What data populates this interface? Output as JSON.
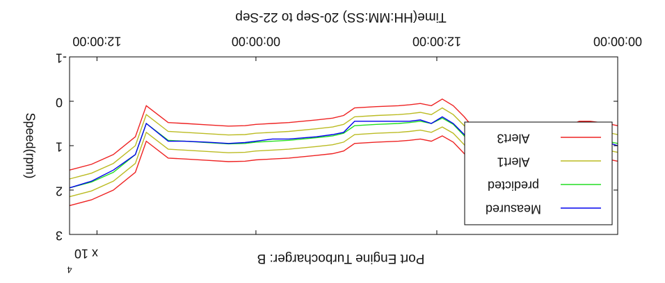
{
  "chart_data": {
    "type": "line",
    "title": "Port Engine Turbocharger: B",
    "xlabel": "Time(HH:MM:SS) 20-Sep to 22-Sep",
    "ylabel": "Speed(rpm)",
    "y_multiplier": "x 10",
    "y_multiplier_exp": "4",
    "orientation": "rotated-180",
    "x_ticks": [
      "12:00:00",
      "00:00:00",
      "12:00:00",
      "00:00:00"
    ],
    "y_ticks": [
      "-1",
      "0",
      "1",
      "2",
      "3"
    ],
    "x": [
      0,
      0.02,
      0.05,
      0.07,
      0.09,
      0.1,
      0.13,
      0.17,
      0.2,
      0.24,
      0.28,
      0.3,
      0.32,
      0.34,
      0.36,
      0.38,
      0.4,
      0.44,
      0.48,
      0.5,
      0.52,
      0.55,
      0.6,
      0.63,
      0.66,
      0.68,
      0.71,
      0.75,
      0.79,
      0.82,
      0.86,
      0.88,
      0.92,
      0.96,
      1.0
    ],
    "series": [
      {
        "name": "Measured",
        "color": "#0000ee",
        "values": [
          1.0,
          0.92,
          0.85,
          0.85,
          0.92,
          1.0,
          1.55,
          1.85,
          1.95,
          1.35,
          0.75,
          0.5,
          0.35,
          0.5,
          0.42,
          0.45,
          0.45,
          0.45,
          0.45,
          0.7,
          0.75,
          0.8,
          0.85,
          0.85,
          0.9,
          0.93,
          0.95,
          0.92,
          0.9,
          0.9,
          0.5,
          1.2,
          1.55,
          1.8,
          1.95
        ]
      },
      {
        "name": "predicted",
        "color": "#22dd22",
        "values": [
          0.95,
          0.9,
          0.85,
          0.85,
          0.95,
          1.05,
          1.5,
          1.85,
          1.95,
          1.4,
          0.78,
          0.52,
          0.38,
          0.5,
          0.45,
          0.48,
          0.5,
          0.52,
          0.55,
          0.72,
          0.78,
          0.82,
          0.88,
          0.9,
          0.92,
          0.95,
          0.96,
          0.93,
          0.9,
          0.88,
          0.5,
          1.2,
          1.6,
          1.82,
          1.95
        ]
      },
      {
        "name": "Alert1",
        "color": "#bbbb22",
        "values": [
          0.75,
          0.7,
          0.65,
          0.65,
          0.75,
          0.85,
          1.3,
          1.65,
          1.75,
          1.15,
          0.55,
          0.3,
          0.15,
          0.3,
          0.25,
          0.28,
          0.3,
          0.32,
          0.35,
          0.52,
          0.58,
          0.62,
          0.68,
          0.7,
          0.72,
          0.75,
          0.76,
          0.73,
          0.7,
          0.68,
          0.3,
          1.0,
          1.4,
          1.62,
          1.75
        ]
      },
      {
        "name": "Alert1",
        "color": "#bbbb22",
        "values": [
          1.15,
          1.1,
          1.05,
          1.05,
          1.15,
          1.25,
          1.7,
          2.05,
          2.15,
          1.6,
          0.98,
          0.72,
          0.58,
          0.7,
          0.65,
          0.68,
          0.7,
          0.72,
          0.75,
          0.92,
          0.98,
          1.02,
          1.08,
          1.1,
          1.12,
          1.15,
          1.16,
          1.13,
          1.1,
          1.08,
          0.7,
          1.4,
          1.8,
          2.02,
          2.15
        ]
      },
      {
        "name": "Alert3",
        "color": "#ee2222",
        "values": [
          0.55,
          0.5,
          0.45,
          0.45,
          0.55,
          0.65,
          1.1,
          1.45,
          1.55,
          0.95,
          0.35,
          0.1,
          -0.05,
          0.1,
          0.05,
          0.08,
          0.1,
          0.12,
          0.15,
          0.32,
          0.38,
          0.42,
          0.48,
          0.5,
          0.52,
          0.55,
          0.56,
          0.53,
          0.5,
          0.48,
          0.1,
          0.8,
          1.2,
          1.42,
          1.55
        ]
      },
      {
        "name": "Alert3",
        "color": "#ee2222",
        "values": [
          1.35,
          1.3,
          1.25,
          1.25,
          1.35,
          1.45,
          1.9,
          2.25,
          2.35,
          1.8,
          1.18,
          0.92,
          0.78,
          0.9,
          0.85,
          0.88,
          0.9,
          0.92,
          0.95,
          1.12,
          1.18,
          1.22,
          1.28,
          1.3,
          1.32,
          1.35,
          1.36,
          1.33,
          1.3,
          1.28,
          0.9,
          1.6,
          2.0,
          2.22,
          2.35
        ]
      }
    ],
    "legend": [
      "Alert3",
      "Alert1",
      "predicted",
      "Measured"
    ],
    "legend_position": "upper-left",
    "ylim": [
      3,
      -1
    ],
    "xlim": [
      1,
      0
    ],
    "grid": false
  }
}
